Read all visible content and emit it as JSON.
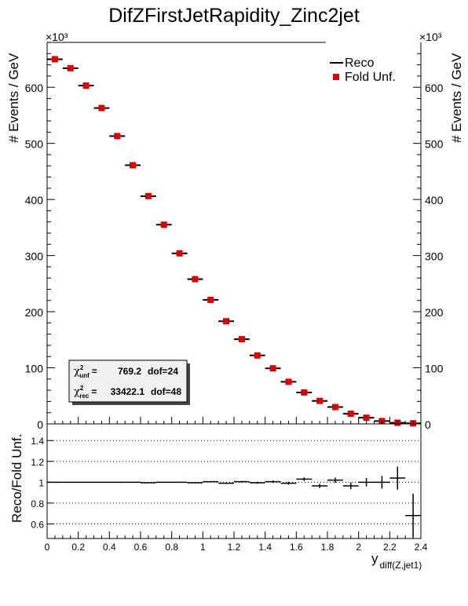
{
  "chart_data": [
    {
      "type": "scatter",
      "title": "DifZFirstJetRapidity_Zinc2jet",
      "ylabel": "# Events / GeV",
      "y_multiplier": "×10³",
      "xlim": [
        0,
        2.4
      ],
      "ylim": [
        0,
        680
      ],
      "yticks": [
        0,
        100,
        200,
        300,
        400,
        500,
        600
      ],
      "bin_width": 0.1,
      "x": [
        0.05,
        0.15,
        0.25,
        0.35,
        0.45,
        0.55,
        0.65,
        0.75,
        0.85,
        0.95,
        1.05,
        1.15,
        1.25,
        1.35,
        1.45,
        1.55,
        1.65,
        1.75,
        1.85,
        1.95,
        2.05,
        2.15,
        2.25,
        2.35
      ],
      "series": [
        {
          "name": "Reco",
          "marker": "line",
          "color": "#000000",
          "values": [
            650,
            634,
            603,
            563,
            513,
            461,
            406,
            355,
            304,
            258,
            221,
            183,
            151,
            122,
            99,
            75,
            56,
            41,
            30,
            18,
            11,
            5,
            2,
            1
          ]
        },
        {
          "name": "Fold Unf.",
          "marker": "square",
          "color": "#dd0000",
          "values": [
            650,
            634,
            603,
            563,
            513,
            461,
            406,
            355,
            304,
            258,
            221,
            183,
            151,
            122,
            99,
            75,
            56,
            41,
            30,
            18,
            11,
            5,
            2,
            1
          ]
        }
      ],
      "legend": "top-right",
      "stats": [
        {
          "label": "χ",
          "sup": "2",
          "sub": "unf",
          "eq": "=",
          "value": "769.2",
          "dof": "dof=24"
        },
        {
          "label": "χ",
          "sup": "2",
          "sub": "rec",
          "eq": "=",
          "value": "33422.1",
          "dof": "dof=48"
        }
      ]
    },
    {
      "type": "scatter",
      "ylabel": "Reco/Fold Unf.",
      "xlabel": "y",
      "xlabel_sub": "diff(Z,jet1)",
      "xlim": [
        0,
        2.4
      ],
      "ylim": [
        0.46,
        1.56
      ],
      "yticks": [
        0.6,
        0.8,
        1,
        1.2,
        1.4
      ],
      "xticks": [
        0,
        0.2,
        0.4,
        0.6,
        0.8,
        1,
        1.2,
        1.4,
        1.6,
        1.8,
        2,
        2.2,
        2.4
      ],
      "grid": "horizontal dotted",
      "x": [
        0.05,
        0.15,
        0.25,
        0.35,
        0.45,
        0.55,
        0.65,
        0.75,
        0.85,
        0.95,
        1.05,
        1.15,
        1.25,
        1.35,
        1.45,
        1.55,
        1.65,
        1.75,
        1.85,
        1.95,
        2.05,
        2.15,
        2.25,
        2.35
      ],
      "values": [
        1.0,
        1.0,
        1.0,
        1.0,
        1.0,
        1.0,
        0.995,
        1.0,
        1.0,
        0.995,
        1.005,
        0.99,
        1.005,
        0.995,
        1.005,
        0.99,
        1.03,
        0.965,
        1.02,
        0.965,
        1.0,
        1.0,
        1.04,
        0.68
      ],
      "errors": [
        0.002,
        0.002,
        0.002,
        0.002,
        0.003,
        0.003,
        0.003,
        0.004,
        0.004,
        0.005,
        0.006,
        0.007,
        0.008,
        0.009,
        0.011,
        0.013,
        0.016,
        0.02,
        0.025,
        0.032,
        0.04,
        0.06,
        0.11,
        0.21
      ]
    }
  ]
}
